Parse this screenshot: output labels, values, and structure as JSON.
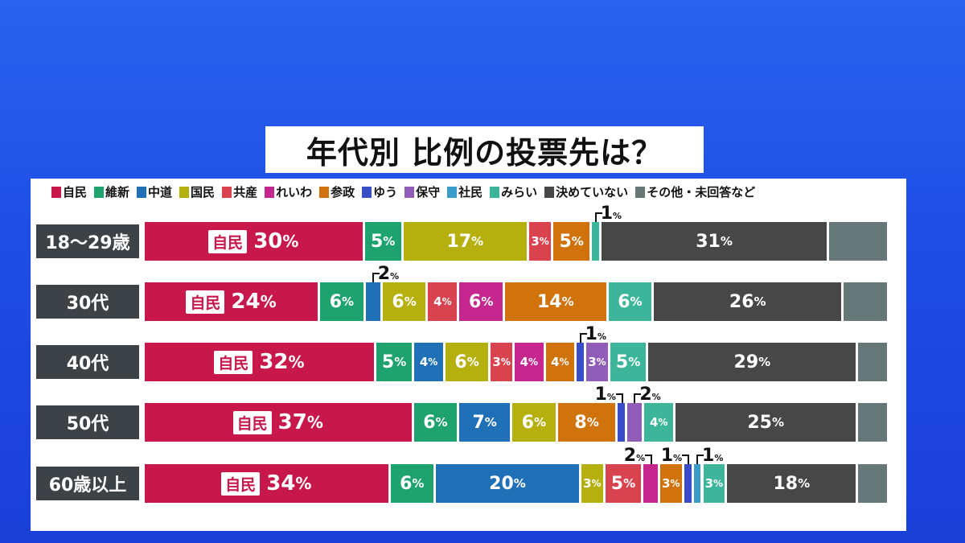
{
  "title": "年代別 比例の投票先は？",
  "chart_data": {
    "type": "bar",
    "orientation": "horizontal",
    "stacked": true,
    "title": "年代別 比例の投票先は？",
    "unit": "%",
    "legend_position": "top",
    "legend": [
      {
        "name": "自民",
        "color": "#c8174a"
      },
      {
        "name": "維新",
        "color": "#1ea36f"
      },
      {
        "name": "中道",
        "color": "#2070b8"
      },
      {
        "name": "国民",
        "color": "#b5b00e"
      },
      {
        "name": "共産",
        "color": "#d9434f"
      },
      {
        "name": "れいわ",
        "color": "#c5278f"
      },
      {
        "name": "参政",
        "color": "#d0730c"
      },
      {
        "name": "ゆう",
        "color": "#3a4dc8"
      },
      {
        "name": "保守",
        "color": "#8f5cb8"
      },
      {
        "name": "社民",
        "color": "#3a9cc8"
      },
      {
        "name": "みらい",
        "color": "#3db59a"
      },
      {
        "name": "決めていない",
        "color": "#474747"
      },
      {
        "name": "その他・未回答など",
        "color": "#667777"
      }
    ],
    "categories": [
      "18〜29歳",
      "30代",
      "40代",
      "50代",
      "60歳以上"
    ],
    "rows": [
      {
        "category": "18〜29歳",
        "segments": [
          {
            "party": "自民",
            "value": 30
          },
          {
            "party": "維新",
            "value": 5
          },
          {
            "party": "国民",
            "value": 17
          },
          {
            "party": "共産",
            "value": 3
          },
          {
            "party": "参政",
            "value": 5
          },
          {
            "party": "みらい",
            "value": 1
          },
          {
            "party": "決めていない",
            "value": 31
          },
          {
            "party": "その他・未回答など",
            "value": 8,
            "labeled": false
          }
        ]
      },
      {
        "category": "30代",
        "segments": [
          {
            "party": "自民",
            "value": 24
          },
          {
            "party": "維新",
            "value": 6
          },
          {
            "party": "中道",
            "value": 2
          },
          {
            "party": "国民",
            "value": 6
          },
          {
            "party": "共産",
            "value": 4
          },
          {
            "party": "れいわ",
            "value": 6
          },
          {
            "party": "参政",
            "value": 14
          },
          {
            "party": "みらい",
            "value": 6
          },
          {
            "party": "決めていない",
            "value": 26
          },
          {
            "party": "その他・未回答など",
            "value": 6,
            "labeled": false
          }
        ]
      },
      {
        "category": "40代",
        "segments": [
          {
            "party": "自民",
            "value": 32
          },
          {
            "party": "維新",
            "value": 5
          },
          {
            "party": "中道",
            "value": 4
          },
          {
            "party": "国民",
            "value": 6
          },
          {
            "party": "共産",
            "value": 3
          },
          {
            "party": "れいわ",
            "value": 4
          },
          {
            "party": "参政",
            "value": 4
          },
          {
            "party": "ゆう",
            "value": 1
          },
          {
            "party": "保守",
            "value": 3
          },
          {
            "party": "みらい",
            "value": 5
          },
          {
            "party": "決めていない",
            "value": 29
          },
          {
            "party": "その他・未回答など",
            "value": 4,
            "labeled": false
          }
        ]
      },
      {
        "category": "50代",
        "segments": [
          {
            "party": "自民",
            "value": 37
          },
          {
            "party": "維新",
            "value": 6
          },
          {
            "party": "中道",
            "value": 7
          },
          {
            "party": "国民",
            "value": 6
          },
          {
            "party": "参政",
            "value": 8
          },
          {
            "party": "ゆう",
            "value": 1
          },
          {
            "party": "保守",
            "value": 2
          },
          {
            "party": "みらい",
            "value": 4
          },
          {
            "party": "決めていない",
            "value": 25
          },
          {
            "party": "その他・未回答など",
            "value": 4,
            "labeled": false
          }
        ]
      },
      {
        "category": "60歳以上",
        "segments": [
          {
            "party": "自民",
            "value": 34
          },
          {
            "party": "維新",
            "value": 6
          },
          {
            "party": "中道",
            "value": 20
          },
          {
            "party": "国民",
            "value": 3
          },
          {
            "party": "共産",
            "value": 5
          },
          {
            "party": "れいわ",
            "value": 2
          },
          {
            "party": "参政",
            "value": 3
          },
          {
            "party": "ゆう",
            "value": 1
          },
          {
            "party": "社民",
            "value": 1
          },
          {
            "party": "みらい",
            "value": 3
          },
          {
            "party": "決めていない",
            "value": 18
          },
          {
            "party": "その他・未回答など",
            "value": 4,
            "labeled": false
          }
        ]
      }
    ]
  }
}
